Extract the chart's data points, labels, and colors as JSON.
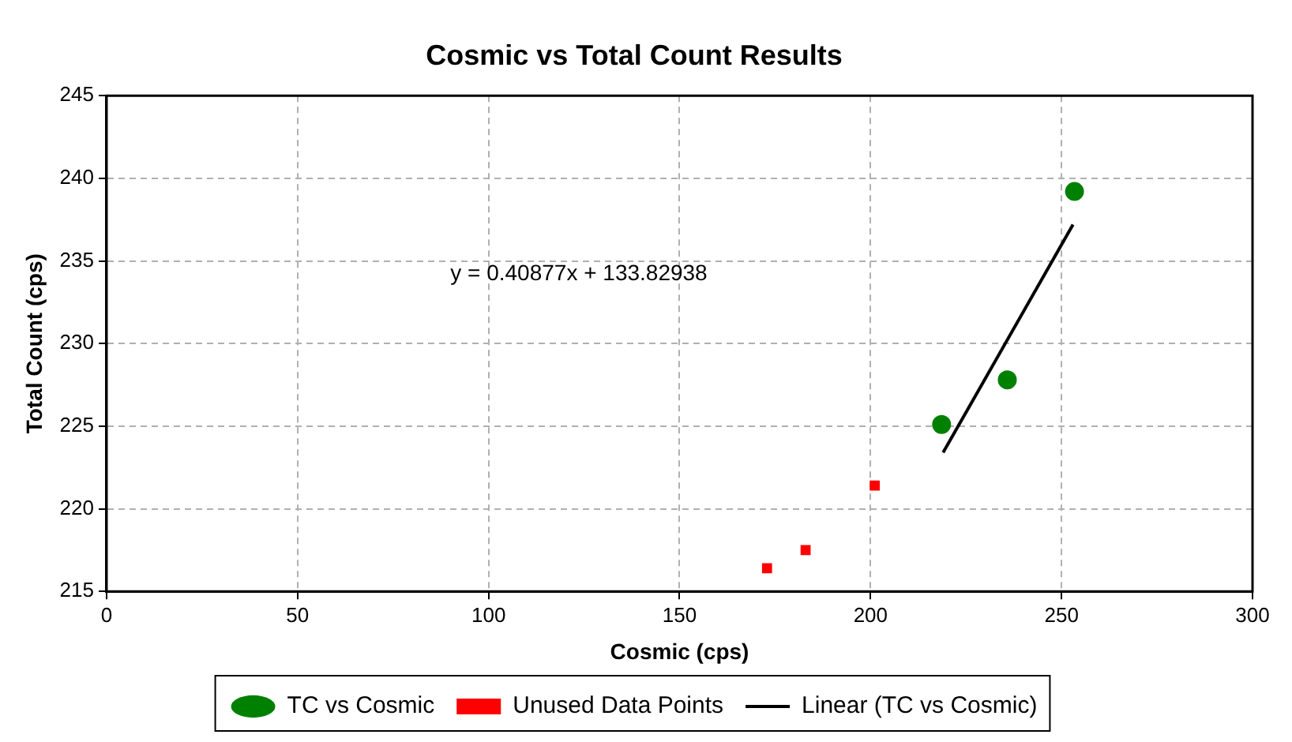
{
  "chart_data": {
    "type": "scatter",
    "title": "Cosmic vs Total Count Results",
    "xlabel": "Cosmic (cps)",
    "ylabel": "Total Count (cps)",
    "xlim": [
      0,
      300
    ],
    "xticks": [
      0,
      50,
      100,
      150,
      200,
      250,
      300
    ],
    "ylim": [
      215,
      245
    ],
    "yticks": [
      215,
      220,
      225,
      230,
      235,
      240,
      245
    ],
    "grid": true,
    "legend": "bottom",
    "series": [
      {
        "name": "TC vs Cosmic",
        "color": "#008000",
        "marker": "circle",
        "x": [
          218.6,
          235.8,
          253.4
        ],
        "values": [
          225.1,
          227.8,
          239.2
        ]
      },
      {
        "name": "Unused Data Points",
        "color": "#ff0000",
        "marker": "square",
        "x": [
          172.9,
          183.0,
          201.1
        ],
        "values": [
          216.4,
          217.5,
          221.4
        ]
      },
      {
        "name": "Linear (TC vs Cosmic)",
        "type": "line",
        "color": "#000000",
        "marker": "none",
        "x": [
          219,
          253
        ],
        "values": [
          223.4,
          237.2
        ]
      }
    ],
    "annotations": [
      "y = 0.40877x + 133.82938"
    ]
  }
}
